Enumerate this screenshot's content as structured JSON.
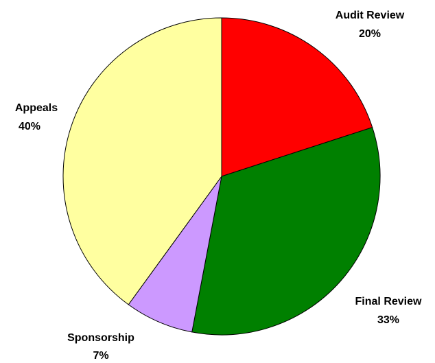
{
  "chart_data": {
    "type": "pie",
    "title": "",
    "categories": [
      "Audit Review",
      "Final Review",
      "Sponsorship",
      "Appeals"
    ],
    "values": [
      20,
      33,
      7,
      40
    ],
    "value_labels": [
      "20%",
      "33%",
      "7%",
      "40%"
    ],
    "colors": [
      "#ff0000",
      "#008000",
      "#cc99ff",
      "#ffffa0"
    ],
    "start_angle": "12 o'clock",
    "direction": "clockwise",
    "legend": "none"
  }
}
